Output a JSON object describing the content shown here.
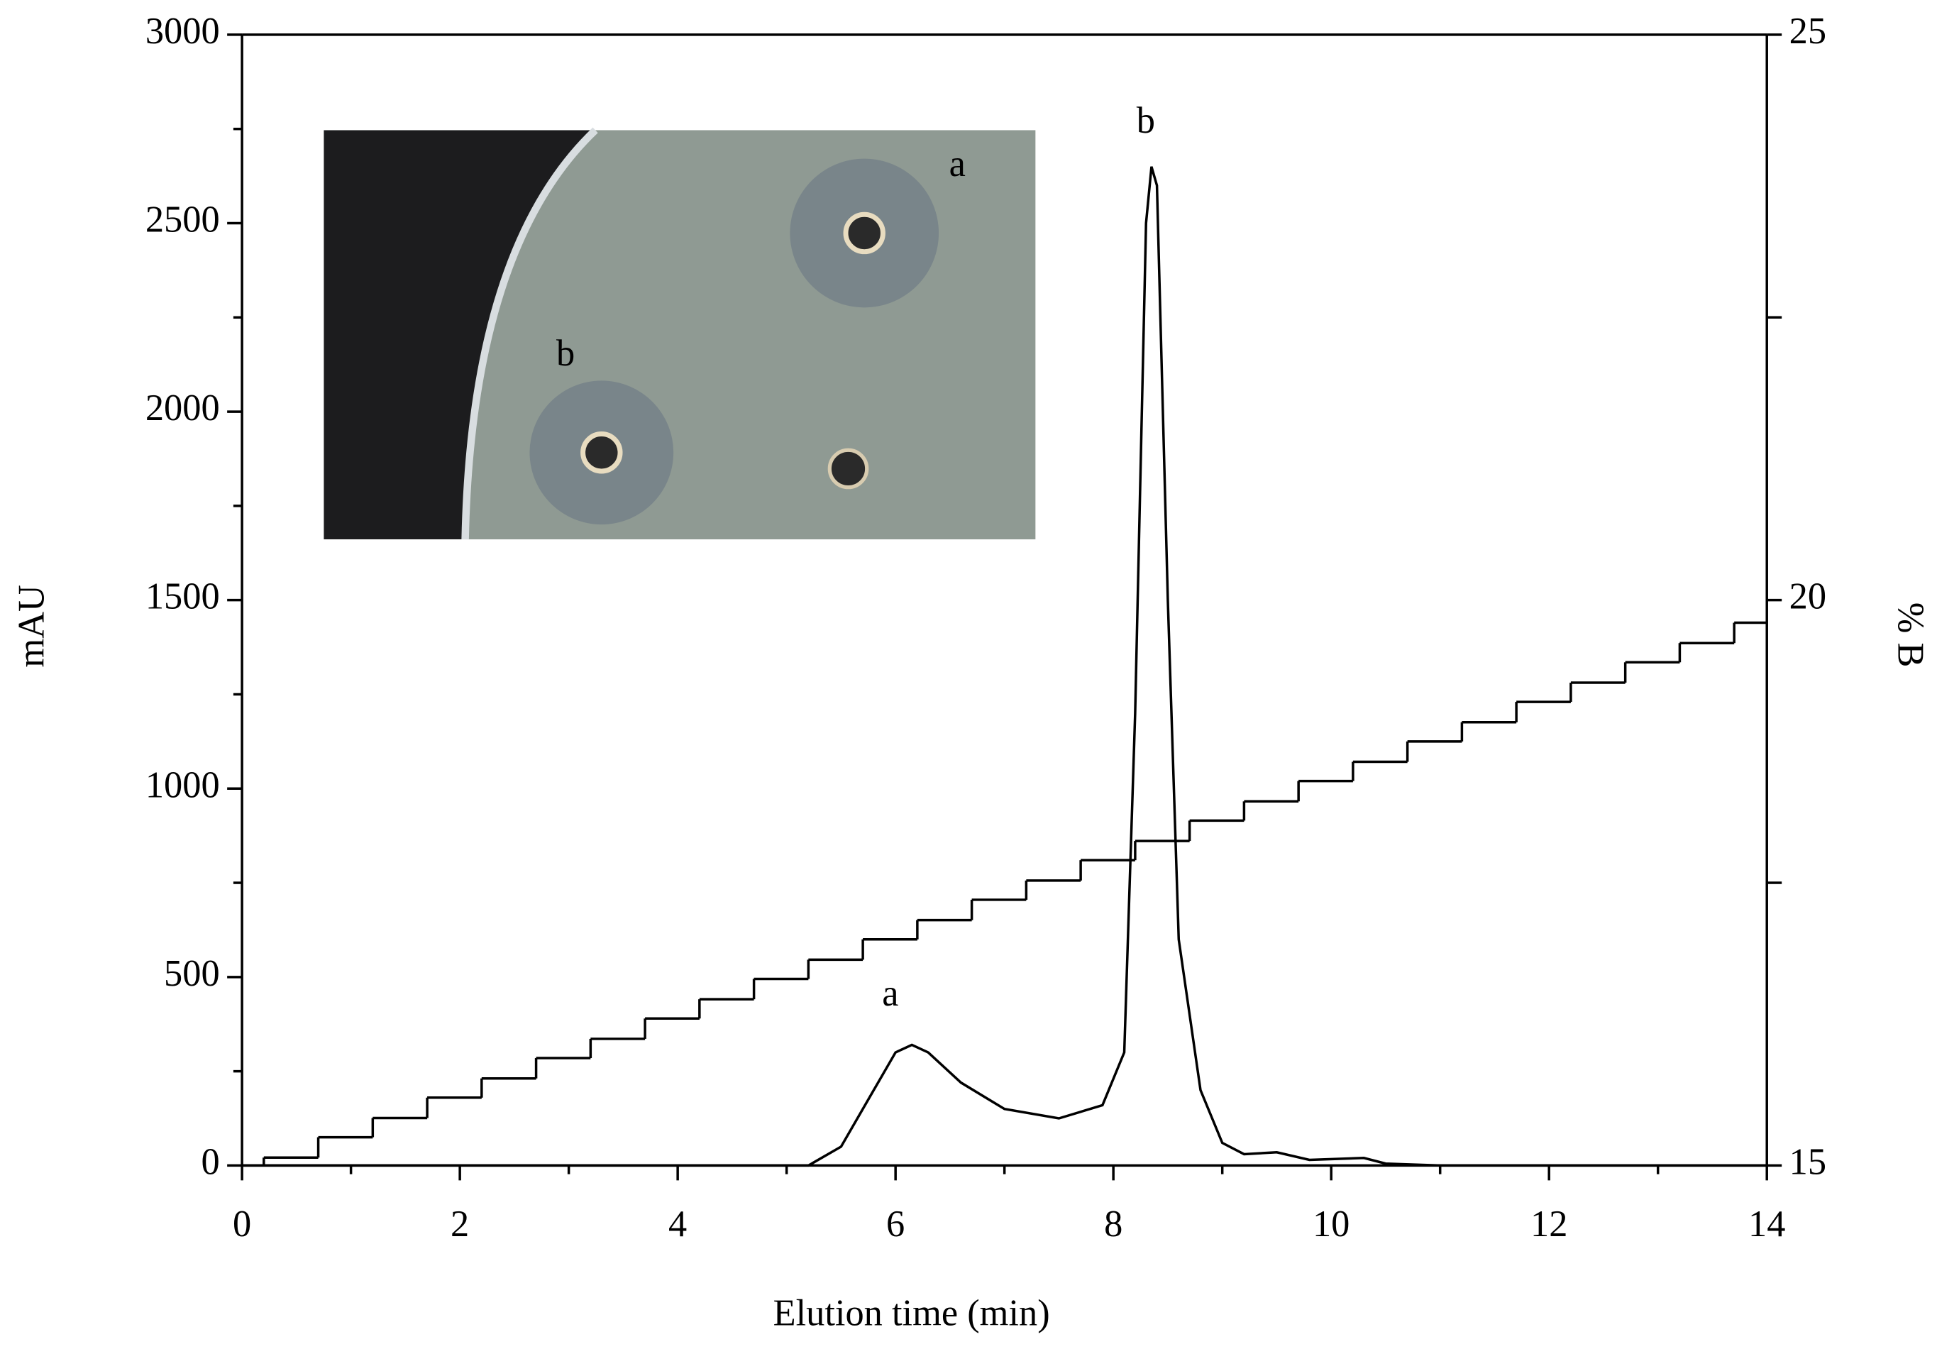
{
  "chart_data": {
    "type": "line",
    "x_label": "Elution time (min)",
    "y_label": "mAU",
    "y2_label": "% B",
    "xlim": [
      0,
      14
    ],
    "xticks": [
      0,
      2,
      4,
      6,
      8,
      10,
      12,
      14
    ],
    "ylim": [
      0,
      3000
    ],
    "yticks": [
      0,
      500,
      1000,
      1500,
      2000,
      2500,
      3000
    ],
    "y2lim": [
      15,
      25
    ],
    "y2ticks": [
      15,
      20,
      25
    ],
    "annotations": [
      "a",
      "b"
    ],
    "inset_labels": [
      "a",
      "b"
    ],
    "series": [
      {
        "color": "#000000",
        "x": [
          0,
          5.2,
          5.5,
          5.8,
          6.0,
          6.15,
          6.3,
          6.6,
          7.0,
          7.5,
          7.9,
          8.1,
          8.2,
          8.3,
          8.35,
          8.4,
          8.5,
          8.6,
          8.8,
          9.0,
          9.2,
          9.5,
          9.8,
          10.3,
          10.5,
          11,
          12,
          14
        ],
        "values": [
          0,
          0,
          50,
          200,
          300,
          320,
          300,
          220,
          150,
          125,
          160,
          300,
          1200,
          2500,
          2650,
          2600,
          1500,
          600,
          200,
          60,
          30,
          35,
          15,
          20,
          5,
          0,
          0,
          0
        ]
      },
      {
        "color": "#000000",
        "axis": "y2",
        "step": true,
        "x": [
          0.2,
          0.7,
          1.2,
          1.7,
          2.2,
          2.7,
          3.2,
          3.7,
          4.2,
          4.7,
          5.2,
          5.7,
          6.2,
          6.7,
          7.2,
          7.7,
          8.2,
          8.7,
          9.2,
          9.7,
          10.2,
          10.7,
          11.2,
          11.7,
          12.2,
          12.7,
          13.2,
          13.7
        ],
        "values": [
          15.07,
          15.25,
          15.42,
          15.6,
          15.77,
          15.95,
          16.12,
          16.3,
          16.47,
          16.65,
          16.82,
          17.0,
          17.17,
          17.35,
          17.52,
          17.7,
          17.87,
          18.05,
          18.22,
          18.4,
          18.57,
          18.75,
          18.92,
          19.1,
          19.27,
          19.45,
          19.62,
          19.8
        ]
      }
    ]
  }
}
